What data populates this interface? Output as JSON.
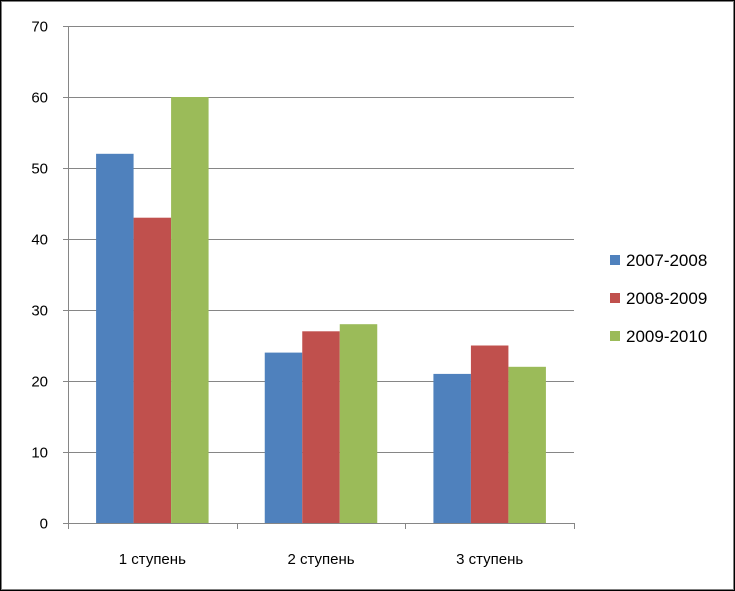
{
  "chart_data": {
    "type": "bar",
    "categories": [
      "1 ступень",
      "2 ступень",
      "3 ступень"
    ],
    "series": [
      {
        "name": "2007-2008",
        "color": "#4f81bd",
        "values": [
          52,
          24,
          21
        ]
      },
      {
        "name": "2008-2009",
        "color": "#c0504d",
        "values": [
          43,
          27,
          25
        ]
      },
      {
        "name": "2009-2010",
        "color": "#9bbb59",
        "values": [
          60,
          28,
          22
        ]
      }
    ],
    "yticks": [
      0,
      10,
      20,
      30,
      40,
      50,
      60,
      70
    ],
    "ylim": [
      0,
      70
    ],
    "grid": true,
    "legend": "right"
  }
}
